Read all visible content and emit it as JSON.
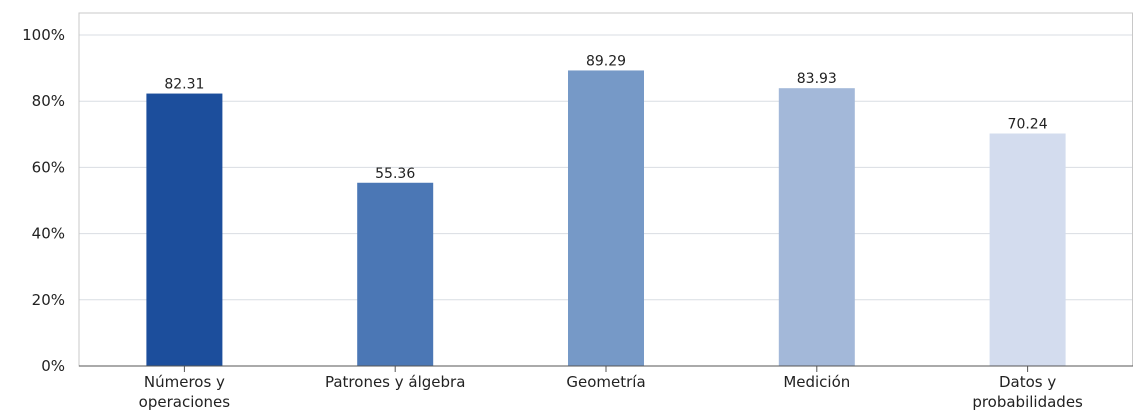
{
  "chart_data": {
    "type": "bar",
    "categories": [
      [
        "Números y",
        "operaciones"
      ],
      [
        "Patrones y álgebra"
      ],
      [
        "Geometría"
      ],
      [
        "Medición"
      ],
      [
        "Datos y",
        "probabilidades"
      ]
    ],
    "values": [
      82.31,
      55.36,
      89.29,
      83.93,
      70.24
    ],
    "value_labels": [
      "82.31",
      "55.36",
      "89.29",
      "83.93",
      "70.24"
    ],
    "colors": [
      "#1c4e9c",
      "#4b77b5",
      "#7699c7",
      "#a3b8d9",
      "#d3dcee"
    ],
    "ylim": [
      0,
      100
    ],
    "yticks": [
      0,
      20,
      40,
      60,
      80,
      100
    ],
    "ytick_labels": [
      "0%",
      "20%",
      "40%",
      "60%",
      "80%",
      "100%"
    ],
    "title": "",
    "xlabel": "",
    "ylabel": "",
    "grid": true,
    "legend": "none"
  }
}
